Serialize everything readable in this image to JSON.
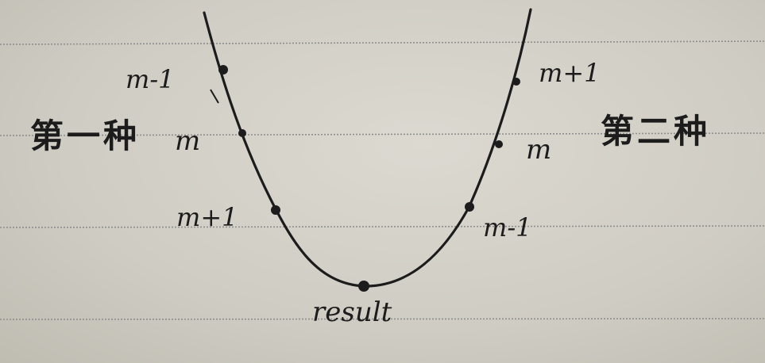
{
  "paper": {
    "rule_color": "#8f8e8f",
    "ink_color": "#1c1c1c"
  },
  "labels": {
    "left_method": "第一种",
    "right_method": "第二种",
    "bottom": "result"
  },
  "left_points": [
    "m-1",
    "m",
    "m+1"
  ],
  "right_points": [
    "m+1",
    "m",
    "m-1"
  ]
}
